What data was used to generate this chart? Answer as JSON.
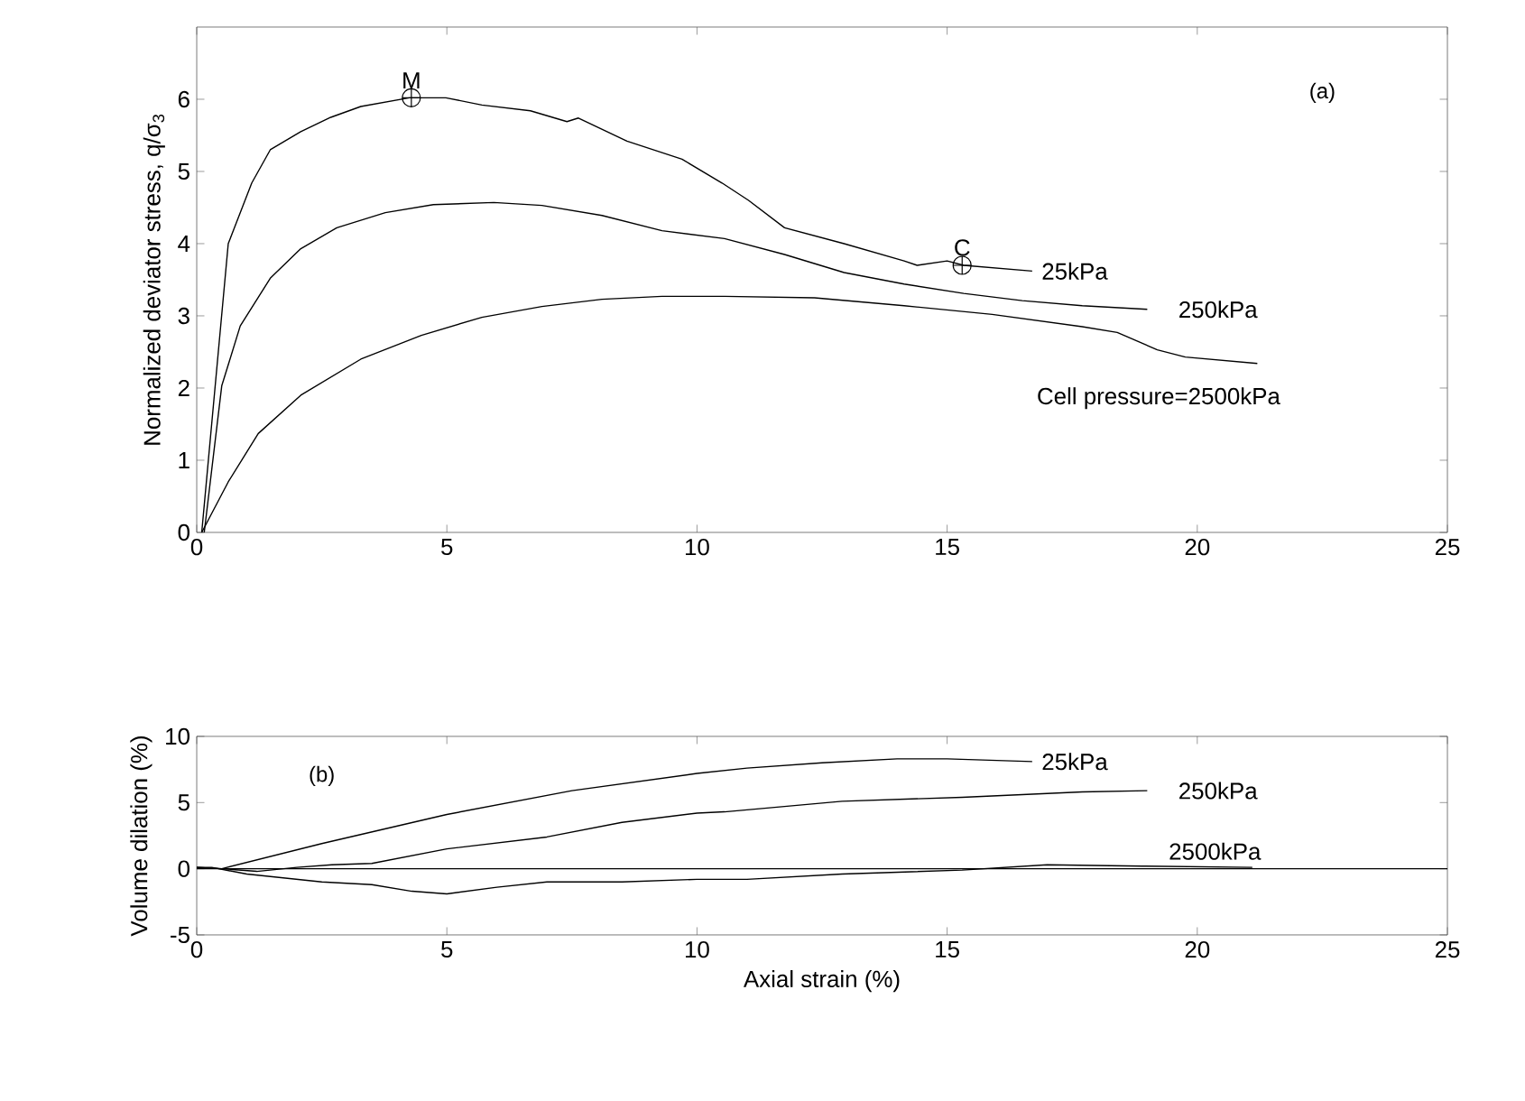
{
  "chart_data": [
    {
      "type": "line",
      "ylabel": "Normalized deviator stress, q/σ$_{3}$",
      "xlim": [
        0,
        25
      ],
      "xticks": [
        0,
        5,
        10,
        15,
        20,
        25
      ],
      "ylim": [
        0,
        7
      ],
      "yticks": [
        0,
        1,
        2,
        3,
        4,
        5,
        6
      ],
      "grid": false,
      "legend": false,
      "marker": "none",
      "line_style": "solid",
      "annotations": [
        "(a)",
        {
          "text": "M",
          "x": 4.29,
          "y": 6.02
        },
        {
          "text": "C",
          "x": 15.3,
          "y": 3.7
        }
      ],
      "series": [
        {
          "name": "25kPa",
          "color": "#000000",
          "x": [
            0.1,
            0.63,
            1.1,
            1.47,
            2.08,
            2.68,
            3.28,
            4.25,
            4.98,
            5.7,
            6.67,
            7.4,
            7.63,
            8.6,
            9.7,
            10.5,
            11.03,
            11.75,
            12.94,
            14.14,
            14.4,
            15.0,
            15.33,
            16.7
          ],
          "values": [
            0,
            4.0,
            4.84,
            5.3,
            5.55,
            5.75,
            5.9,
            6.02,
            6.02,
            5.92,
            5.84,
            5.69,
            5.74,
            5.42,
            5.17,
            4.84,
            4.6,
            4.22,
            4.0,
            3.76,
            3.7,
            3.76,
            3.7,
            3.62
          ]
        },
        {
          "name": "250kPa",
          "color": "#000000",
          "x": [
            0.15,
            0.5,
            0.87,
            1.47,
            2.08,
            2.8,
            3.77,
            4.73,
            5.94,
            6.9,
            8.1,
            9.3,
            10.55,
            11.75,
            12.94,
            14.14,
            15.33,
            16.5,
            17.7,
            19.0
          ],
          "values": [
            0,
            2.03,
            2.86,
            3.52,
            3.93,
            4.22,
            4.43,
            4.54,
            4.57,
            4.53,
            4.39,
            4.18,
            4.07,
            3.85,
            3.6,
            3.44,
            3.31,
            3.21,
            3.14,
            3.09
          ]
        },
        {
          "name": "Cell pressure=2500kPa",
          "color": "#000000",
          "x": [
            0.1,
            0.63,
            1.23,
            2.08,
            3.28,
            4.49,
            5.7,
            6.9,
            8.1,
            9.3,
            10.55,
            12.35,
            14.14,
            15.9,
            17.7,
            18.4,
            19.2,
            19.76,
            21.2
          ],
          "values": [
            0,
            0.7,
            1.37,
            1.9,
            2.4,
            2.73,
            2.98,
            3.13,
            3.23,
            3.27,
            3.27,
            3.25,
            3.14,
            3.02,
            2.85,
            2.77,
            2.53,
            2.43,
            2.34
          ]
        }
      ]
    },
    {
      "type": "line",
      "xlabel": "Axial strain (%)",
      "ylabel": "Volume dilation (%)",
      "xlim": [
        0,
        25
      ],
      "xticks": [
        0,
        5,
        10,
        15,
        20,
        25
      ],
      "ylim": [
        -5,
        10
      ],
      "yticks": [
        -5,
        0,
        5,
        10
      ],
      "grid": false,
      "legend": false,
      "marker": "none",
      "line_style": "solid",
      "annotations": [
        "(b)"
      ],
      "ref_lines": [
        {
          "axis": "y",
          "value": 0,
          "color": "#000000"
        }
      ],
      "series": [
        {
          "name": "25kPa",
          "color": "#000000",
          "x": [
            0,
            0.5,
            2.5,
            5,
            7.5,
            10,
            11,
            12.5,
            14,
            15,
            16.7
          ],
          "values": [
            0.1,
            0,
            1.9,
            4.1,
            5.9,
            7.2,
            7.6,
            8.0,
            8.3,
            8.3,
            8.1
          ]
        },
        {
          "name": "250kPa",
          "color": "#000000",
          "x": [
            0,
            0.5,
            1.2,
            2,
            2.7,
            3.5,
            5,
            7,
            8.5,
            10,
            10.55,
            12.9,
            15.3,
            17.7,
            19.0
          ],
          "values": [
            0.1,
            0,
            -0.2,
            0.1,
            0.3,
            0.4,
            1.5,
            2.4,
            3.5,
            4.2,
            4.3,
            5.1,
            5.4,
            5.8,
            5.9
          ]
        },
        {
          "name": "2500kPa",
          "color": "#000000",
          "x": [
            0,
            0.3,
            1,
            2.5,
            3.5,
            4.3,
            5,
            6,
            7,
            8.5,
            10,
            11,
            12.9,
            15.3,
            17,
            18.9,
            21.1
          ],
          "values": [
            0.1,
            0.1,
            -0.4,
            -1.0,
            -1.2,
            -1.7,
            -1.9,
            -1.4,
            -1.0,
            -1.0,
            -0.8,
            -0.8,
            -0.4,
            -0.1,
            0.3,
            0.2,
            0.1
          ]
        }
      ]
    }
  ]
}
